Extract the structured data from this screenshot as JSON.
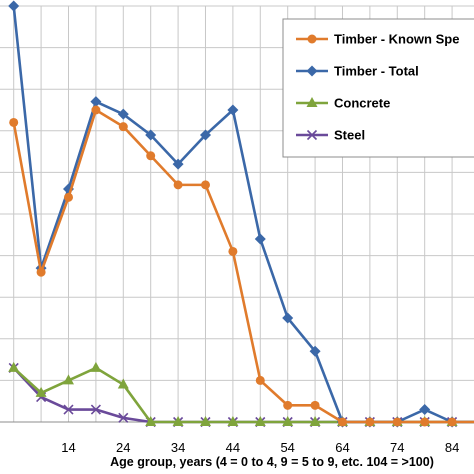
{
  "chart_data": {
    "type": "line",
    "xlabel": "Age group, years (4 = 0 to 4, 9 = 5 to 9, etc. 104 = >100)",
    "ylabel": "",
    "title": "",
    "x": [
      -6,
      -1,
      4,
      9,
      14,
      19,
      24,
      29,
      34,
      39,
      44,
      49,
      54,
      59,
      64,
      69,
      74,
      79,
      84,
      89
    ],
    "x_tick_labels": [
      "14",
      "24",
      "34",
      "44",
      "54",
      "64",
      "74",
      "84"
    ],
    "x_tick_values": [
      14,
      24,
      34,
      44,
      54,
      64,
      74,
      84
    ],
    "xlim": [
      1.5,
      88
    ],
    "ylim": [
      0,
      100
    ],
    "grid": true,
    "legend_position": "top-right",
    "series": [
      {
        "name": "Timber - Known Spe",
        "color": "#e07b2c",
        "marker": "circle",
        "values": [
          null,
          null,
          72,
          36,
          54,
          75,
          71,
          64,
          57,
          57,
          41,
          10,
          4,
          4,
          0,
          0,
          0,
          0,
          0,
          0
        ]
      },
      {
        "name": "Timber - Total",
        "color": "#3b68a8",
        "marker": "diamond",
        "values": [
          null,
          null,
          100,
          37,
          56,
          77,
          74,
          69,
          62,
          69,
          75,
          44,
          25,
          17,
          0,
          0,
          0,
          3,
          0,
          0
        ]
      },
      {
        "name": "Concrete",
        "color": "#7fa43c",
        "marker": "triangle",
        "values": [
          null,
          null,
          13,
          7,
          10,
          13,
          9,
          0,
          0,
          0,
          0,
          0,
          0,
          0,
          0,
          0,
          0,
          0,
          0,
          0
        ]
      },
      {
        "name": "Steel",
        "color": "#6a4a9a",
        "marker": "x",
        "values": [
          null,
          null,
          13,
          6,
          3,
          3,
          1,
          0,
          0,
          0,
          0,
          0,
          0,
          0,
          0,
          0,
          0,
          0,
          0,
          0
        ]
      }
    ]
  }
}
